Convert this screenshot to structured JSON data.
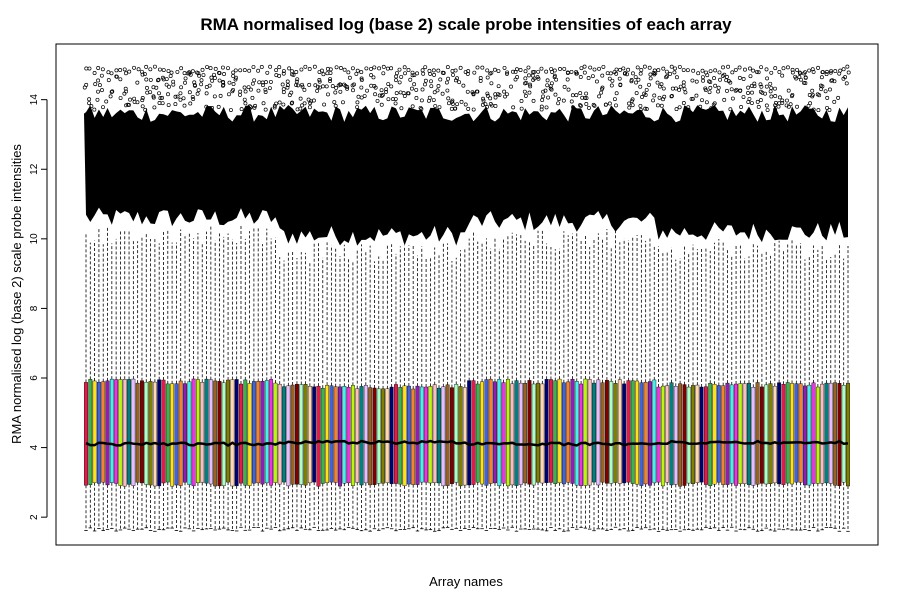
{
  "chart_data": {
    "type": "boxplot",
    "title": "RMA normalised log (base 2) scale probe intensities of each array",
    "xlabel": "Array names",
    "ylabel": "RMA normalised log (base 2) scale probe intensities",
    "ylim": [
      1.2,
      15.6
    ],
    "yticks": [
      2,
      4,
      6,
      8,
      10,
      12,
      14
    ],
    "n_arrays": 178,
    "box_colors": [
      "#e6194b",
      "#3cb44b",
      "#ffe119",
      "#4363d8",
      "#f58231",
      "#911eb4",
      "#46f0f0",
      "#f032e6",
      "#bcf60c",
      "#fabebe",
      "#008080",
      "#e6beff",
      "#9a6324",
      "#800000",
      "#aaffc3",
      "#808000",
      "#ffd8b1",
      "#000075"
    ],
    "summary": {
      "median": 4.15,
      "q1": 2.95,
      "q3": 5.8,
      "lower_whisker": 1.65,
      "upper_whisker": 9.9,
      "max_outlier": 15.0
    },
    "segments": [
      {
        "range": [
          0,
          0.25
        ],
        "q3": 5.9,
        "upper_whisker": 10.1,
        "median": 4.1
      },
      {
        "range": [
          0.25,
          0.5
        ],
        "q3": 5.75,
        "upper_whisker": 9.6,
        "median": 4.15
      },
      {
        "range": [
          0.5,
          0.75
        ],
        "q3": 5.9,
        "upper_whisker": 10.0,
        "median": 4.1
      },
      {
        "range": [
          0.75,
          1.0
        ],
        "q3": 5.8,
        "upper_whisker": 9.7,
        "median": 4.15
      }
    ],
    "grid": false,
    "legend": "none"
  }
}
